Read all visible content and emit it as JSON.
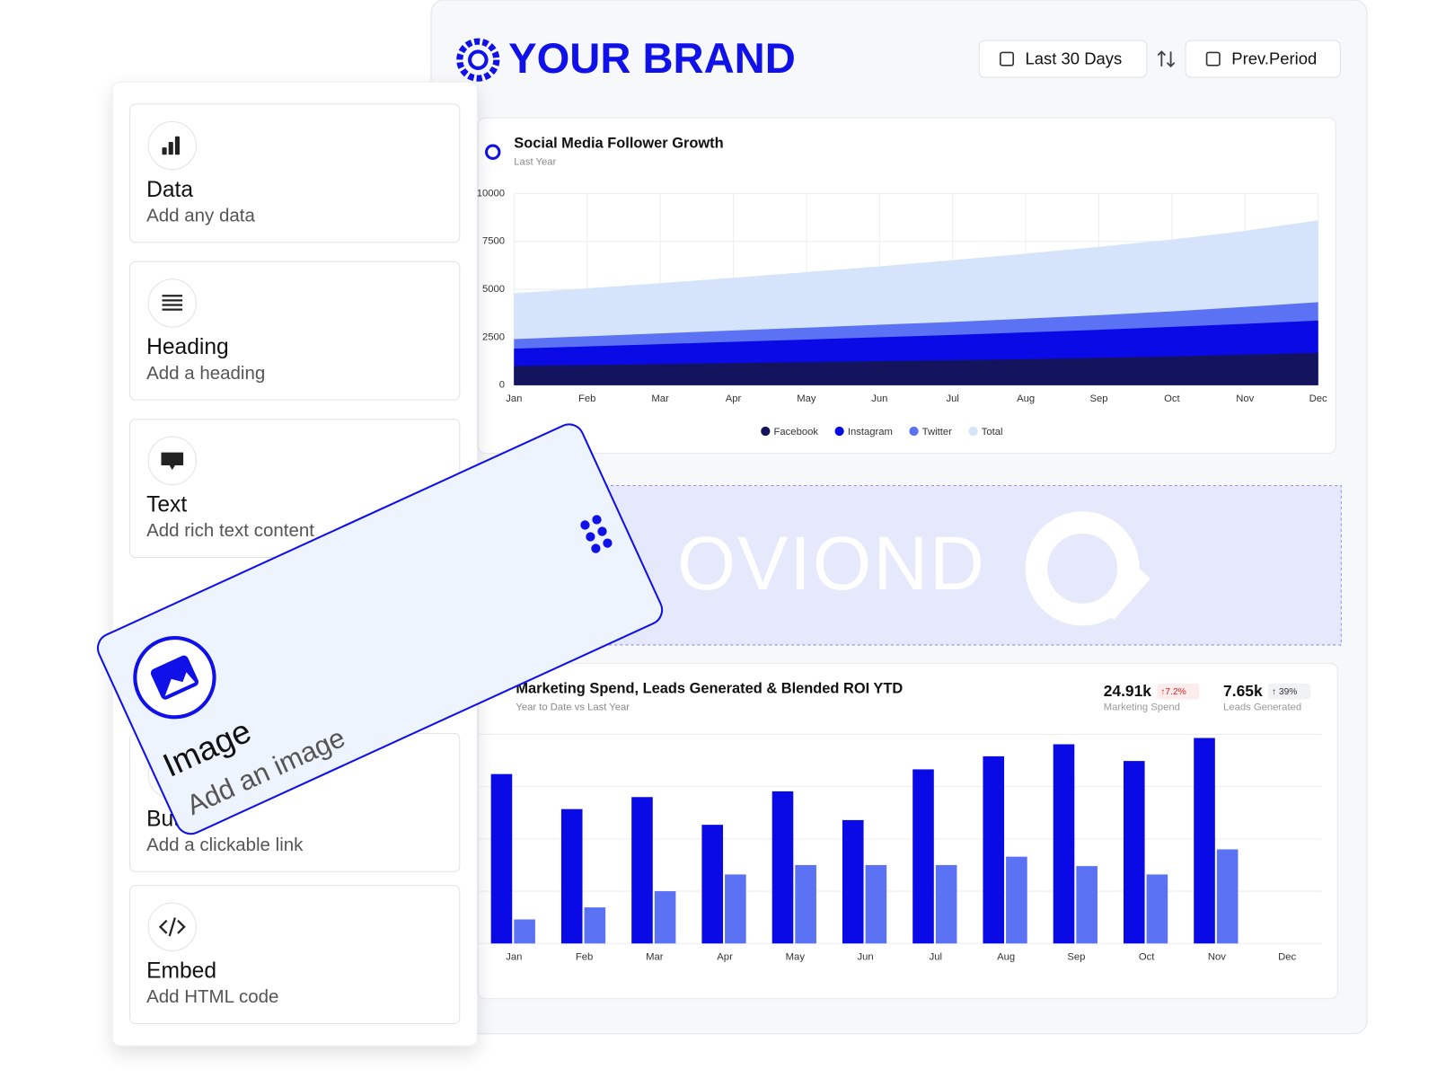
{
  "header": {
    "brand": "YOUR BRAND",
    "buttons": [
      "Last 30 Days",
      "Prev.Period"
    ]
  },
  "chart_data": [
    {
      "type": "area",
      "title": "Social Media Follower Growth",
      "subtitle": "Last Year",
      "categories": [
        "Jan",
        "Feb",
        "Mar",
        "Apr",
        "May",
        "Jun",
        "Jul",
        "Aug",
        "Sep",
        "Oct",
        "Nov",
        "Dec"
      ],
      "series": [
        {
          "name": "Facebook",
          "color": "#14135e",
          "values": [
            1000,
            1050,
            1100,
            1150,
            1200,
            1250,
            1300,
            1350,
            1420,
            1500,
            1590,
            1680
          ]
        },
        {
          "name": "Instagram",
          "color": "#0a0ae6",
          "values": [
            1900,
            2020,
            2140,
            2260,
            2380,
            2500,
            2620,
            2750,
            2890,
            3040,
            3200,
            3370
          ]
        },
        {
          "name": "Twitter",
          "color": "#5b72f5",
          "values": [
            2400,
            2550,
            2700,
            2850,
            3000,
            3150,
            3300,
            3470,
            3650,
            3850,
            4080,
            4330
          ]
        },
        {
          "name": "Total",
          "color": "#d6e4fb",
          "values": [
            4800,
            5050,
            5320,
            5600,
            5900,
            6200,
            6520,
            6860,
            7220,
            7600,
            8050,
            8600
          ]
        }
      ],
      "ylim": [
        0,
        10000
      ],
      "yticks": [
        0,
        2500,
        5000,
        7500,
        10000
      ],
      "grid": true,
      "legend": "bottom"
    },
    {
      "type": "bar",
      "title": "Marketing Spend, Leads Generated & Blended ROI YTD",
      "subtitle": "Year to Date vs Last Year",
      "categories": [
        "Jan",
        "Feb",
        "Mar",
        "Apr",
        "May",
        "Jun",
        "Jul",
        "Aug",
        "Sep",
        "Oct",
        "Nov",
        "Dec"
      ],
      "series": [
        {
          "color": "#0a0ae6",
          "values": [
            324,
            257,
            280,
            227,
            291,
            236,
            333,
            358,
            381,
            349,
            393,
            null
          ]
        },
        {
          "color": "#5b72f5",
          "values": [
            46,
            69,
            100,
            132,
            150,
            150,
            150,
            166,
            148,
            132,
            180,
            null
          ]
        }
      ],
      "ylim": [
        0,
        400
      ],
      "yticks": [
        0,
        100,
        200,
        300,
        400
      ],
      "grid": true,
      "tick_labels": false,
      "kpis": [
        {
          "value": "24.91k",
          "change": "↑7.2%",
          "change_color": "#d92020",
          "label": "Marketing Spend"
        },
        {
          "value": "7.65k",
          "change": "↑ 39%",
          "change_color": "#333333",
          "label": "Leads Generated"
        }
      ]
    }
  ],
  "banner": {
    "logo": "OVIOND"
  },
  "sidebar": {
    "items": [
      {
        "title": "Data",
        "subtitle": "Add any data"
      },
      {
        "title": "Heading",
        "subtitle": "Add a heading"
      },
      {
        "title": "Text",
        "subtitle": "Add rich text content"
      },
      {
        "title": "Button",
        "subtitle": "Add a clickable link"
      },
      {
        "title": "Embed",
        "subtitle": "Add HTML code"
      }
    ]
  },
  "drag_card": {
    "title": "Image",
    "subtitle": "Add an image"
  }
}
